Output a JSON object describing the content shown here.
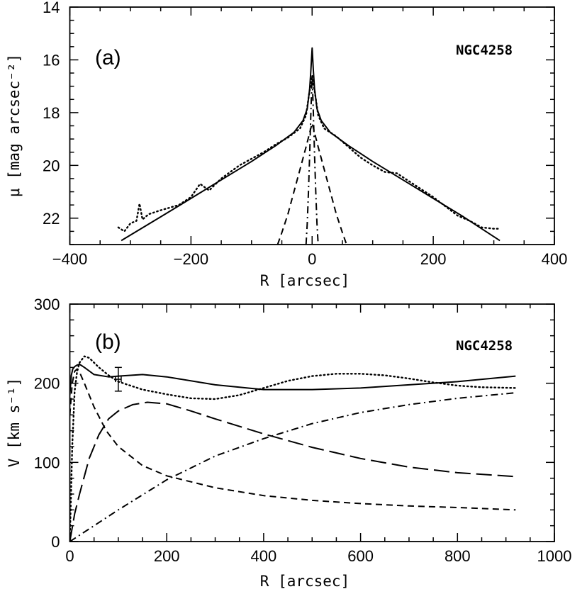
{
  "chart_data": [
    {
      "type": "line",
      "panel_label": "(a)",
      "annotation": "NGC4258",
      "xlabel": "R [arcsec]",
      "ylabel": "μ [mag arcsec⁻²]",
      "xlim": [
        -400,
        400
      ],
      "ylim": [
        23,
        14
      ],
      "y_inverted": true,
      "xticks": [
        -400,
        -200,
        0,
        200,
        400
      ],
      "xtick_labels": [
        "−400",
        "−200",
        "0",
        "200",
        "400"
      ],
      "yticks": [
        14,
        16,
        18,
        20,
        22
      ],
      "ytick_labels": [
        "14",
        "16",
        "18",
        "20",
        "22"
      ],
      "grid": false,
      "series": [
        {
          "style": "solid",
          "x": [
            -315,
            -250,
            -200,
            -150,
            -100,
            -60,
            -30,
            -15,
            -8,
            -4,
            -2,
            0,
            2,
            4,
            8,
            15,
            30,
            60,
            100,
            150,
            200,
            250,
            310
          ],
          "y": [
            22.85,
            21.95,
            21.25,
            20.55,
            19.85,
            19.25,
            18.75,
            18.3,
            17.85,
            17.1,
            16.4,
            15.55,
            16.4,
            17.1,
            17.85,
            18.3,
            18.75,
            19.25,
            19.85,
            20.55,
            21.25,
            21.95,
            22.85
          ]
        },
        {
          "style": "dotted",
          "x": [
            -320,
            -310,
            -300,
            -290,
            -285,
            -280,
            -270,
            -250,
            -220,
            -200,
            -185,
            -170,
            -150,
            -120,
            -100,
            -80,
            -60,
            -40,
            -20,
            -10,
            -5,
            0,
            5,
            10,
            20,
            40,
            60,
            80,
            100,
            120,
            140,
            160,
            200,
            240,
            260,
            280,
            300,
            310
          ],
          "y": [
            22.35,
            22.5,
            22.2,
            22.1,
            21.45,
            22.05,
            21.85,
            21.7,
            21.5,
            21.2,
            20.7,
            20.95,
            20.5,
            20.0,
            19.75,
            19.5,
            19.2,
            18.95,
            18.6,
            18.1,
            17.3,
            16.6,
            17.3,
            18.1,
            18.6,
            18.9,
            19.3,
            19.7,
            20.0,
            20.25,
            20.3,
            20.6,
            21.2,
            21.9,
            22.1,
            22.35,
            22.4,
            22.4
          ]
        },
        {
          "style": "dashed",
          "x": [
            -57,
            -50,
            -40,
            -30,
            -20,
            -10,
            -5,
            0,
            5,
            10,
            20,
            30,
            40,
            50,
            57
          ],
          "y": [
            23.0,
            22.55,
            21.85,
            21.0,
            20.15,
            19.3,
            18.85,
            18.4,
            18.85,
            19.3,
            20.15,
            21.0,
            21.85,
            22.55,
            23.0
          ]
        },
        {
          "style": "dash-dot",
          "x": [
            -10,
            -8,
            -6,
            -4,
            -2,
            0,
            2,
            4,
            6,
            8,
            10
          ],
          "y": [
            23.0,
            22.2,
            21.0,
            19.6,
            18.0,
            16.6,
            18.0,
            19.6,
            21.0,
            22.2,
            23.0
          ]
        }
      ]
    },
    {
      "type": "line",
      "panel_label": "(b)",
      "annotation": "NGC4258",
      "xlabel": "R [arcsec]",
      "ylabel": "V [km s⁻¹]",
      "xlim": [
        0,
        1000
      ],
      "ylim": [
        0,
        300
      ],
      "xticks": [
        0,
        200,
        400,
        600,
        800,
        1000
      ],
      "xtick_labels": [
        "0",
        "200",
        "400",
        "600",
        "800",
        "1000"
      ],
      "yticks": [
        0,
        100,
        200,
        300
      ],
      "ytick_labels": [
        "0",
        "100",
        "200",
        "300"
      ],
      "grid": false,
      "error_point": {
        "x": 100,
        "y": 205,
        "yerr": 15,
        "xerr": 6
      },
      "series": [
        {
          "style": "solid",
          "x": [
            0,
            3,
            6,
            10,
            15,
            20,
            30,
            50,
            80,
            100,
            150,
            200,
            300,
            400,
            500,
            600,
            700,
            800,
            920
          ],
          "y": [
            185,
            210,
            218,
            221,
            223,
            224,
            220,
            211,
            208,
            209,
            211,
            208,
            198,
            192,
            192,
            194,
            198,
            202,
            209
          ]
        },
        {
          "style": "dotted",
          "x": [
            0,
            5,
            10,
            15,
            20,
            30,
            40,
            60,
            80,
            100,
            150,
            200,
            250,
            300,
            350,
            400,
            450,
            500,
            550,
            600,
            650,
            700,
            750,
            800,
            850,
            920
          ],
          "y": [
            0,
            120,
            190,
            215,
            226,
            234,
            232,
            220,
            210,
            202,
            192,
            186,
            181,
            180,
            185,
            194,
            203,
            209,
            212,
            212,
            210,
            206,
            201,
            197,
            195,
            194
          ]
        },
        {
          "style": "dashed",
          "x": [
            0,
            5,
            10,
            15,
            20,
            30,
            50,
            75,
            100,
            150,
            200,
            300,
            400,
            500,
            600,
            700,
            800,
            920
          ],
          "y": [
            160,
            200,
            215,
            218,
            214,
            200,
            170,
            140,
            120,
            96,
            83,
            68,
            58,
            52,
            48,
            45,
            43,
            40
          ]
        },
        {
          "style": "long-dashed",
          "x": [
            0,
            10,
            20,
            40,
            60,
            80,
            100,
            130,
            160,
            200,
            250,
            300,
            400,
            500,
            600,
            700,
            800,
            920
          ],
          "y": [
            0,
            35,
            60,
            105,
            135,
            155,
            165,
            173,
            176,
            174,
            165,
            155,
            136,
            119,
            105,
            94,
            87,
            82
          ]
        },
        {
          "style": "dash-dot",
          "x": [
            0,
            100,
            200,
            300,
            400,
            500,
            600,
            700,
            800,
            920
          ],
          "y": [
            0,
            40,
            78,
            108,
            130,
            149,
            163,
            173,
            181,
            188
          ]
        }
      ]
    }
  ]
}
